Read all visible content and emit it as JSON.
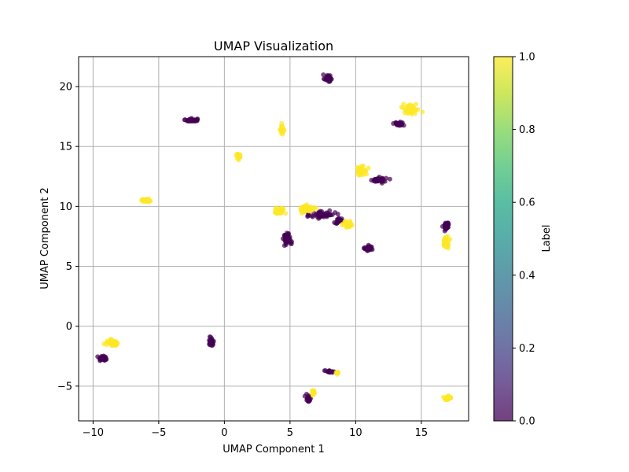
{
  "chart_data": {
    "type": "scatter",
    "title": "UMAP Visualization",
    "xlabel": "UMAP Component 1",
    "ylabel": "UMAP Component 2",
    "xlim": [
      -11.1,
      18.6
    ],
    "ylim": [
      -7.9,
      22.5
    ],
    "xticks": [
      -10,
      -5,
      0,
      5,
      10,
      15
    ],
    "yticks": [
      -5,
      0,
      5,
      10,
      15,
      20
    ],
    "grid": true,
    "colormap": "viridis",
    "point_alpha": 0.7,
    "colorbar": {
      "label": "Label",
      "min": 0.0,
      "max": 1.0,
      "ticks": [
        "0.0",
        "0.2",
        "0.4",
        "0.6",
        "0.8",
        "1.0"
      ]
    },
    "series": [
      {
        "label_value": 0,
        "color": "#440154",
        "clusters": [
          {
            "center": [
              7.9,
              20.7
            ],
            "spread": [
              0.3,
              0.3
            ],
            "count": 40
          },
          {
            "center": [
              -2.5,
              17.2
            ],
            "spread": [
              0.45,
              0.12
            ],
            "count": 40
          },
          {
            "center": [
              13.3,
              16.9
            ],
            "spread": [
              0.4,
              0.15
            ],
            "count": 35
          },
          {
            "center": [
              11.8,
              12.2
            ],
            "spread": [
              0.5,
              0.2
            ],
            "count": 40
          },
          {
            "center": [
              16.9,
              8.4
            ],
            "spread": [
              0.2,
              0.35
            ],
            "count": 45
          },
          {
            "center": [
              11.0,
              6.5
            ],
            "spread": [
              0.3,
              0.2
            ],
            "count": 35
          },
          {
            "center": [
              4.8,
              7.3
            ],
            "spread": [
              0.3,
              0.5
            ],
            "count": 45
          },
          {
            "center": [
              7.5,
              9.3
            ],
            "spread": [
              0.9,
              0.35
            ],
            "count": 55
          },
          {
            "center": [
              8.7,
              8.8
            ],
            "spread": [
              0.4,
              0.25
            ],
            "count": 20
          },
          {
            "center": [
              -1.0,
              -1.3
            ],
            "spread": [
              0.2,
              0.3
            ],
            "count": 40
          },
          {
            "center": [
              -9.2,
              -2.7
            ],
            "spread": [
              0.35,
              0.2
            ],
            "count": 35
          },
          {
            "center": [
              8.0,
              -3.8
            ],
            "spread": [
              0.4,
              0.1
            ],
            "count": 20
          },
          {
            "center": [
              6.4,
              -6.0
            ],
            "spread": [
              0.2,
              0.3
            ],
            "count": 25
          }
        ]
      },
      {
        "label_value": 1,
        "color": "#fde725",
        "clusters": [
          {
            "center": [
              14.2,
              18.1
            ],
            "spread": [
              0.6,
              0.5
            ],
            "count": 40
          },
          {
            "center": [
              4.4,
              16.4
            ],
            "spread": [
              0.12,
              0.35
            ],
            "count": 30
          },
          {
            "center": [
              1.1,
              14.2
            ],
            "spread": [
              0.2,
              0.2
            ],
            "count": 30
          },
          {
            "center": [
              10.4,
              13.0
            ],
            "spread": [
              0.4,
              0.4
            ],
            "count": 40
          },
          {
            "center": [
              -6.0,
              10.5
            ],
            "spread": [
              0.35,
              0.1
            ],
            "count": 30
          },
          {
            "center": [
              4.2,
              9.6
            ],
            "spread": [
              0.4,
              0.3
            ],
            "count": 40
          },
          {
            "center": [
              6.3,
              9.8
            ],
            "spread": [
              0.5,
              0.3
            ],
            "count": 50
          },
          {
            "center": [
              9.4,
              8.5
            ],
            "spread": [
              0.4,
              0.3
            ],
            "count": 20
          },
          {
            "center": [
              16.9,
              7.0
            ],
            "spread": [
              0.25,
              0.5
            ],
            "count": 45
          },
          {
            "center": [
              -8.6,
              -1.4
            ],
            "spread": [
              0.5,
              0.25
            ],
            "count": 35
          },
          {
            "center": [
              6.8,
              -5.5
            ],
            "spread": [
              0.15,
              0.2
            ],
            "count": 20
          },
          {
            "center": [
              8.6,
              -3.9
            ],
            "spread": [
              0.15,
              0.1
            ],
            "count": 10
          },
          {
            "center": [
              17.0,
              -6.0
            ],
            "spread": [
              0.3,
              0.15
            ],
            "count": 40
          }
        ]
      }
    ]
  }
}
